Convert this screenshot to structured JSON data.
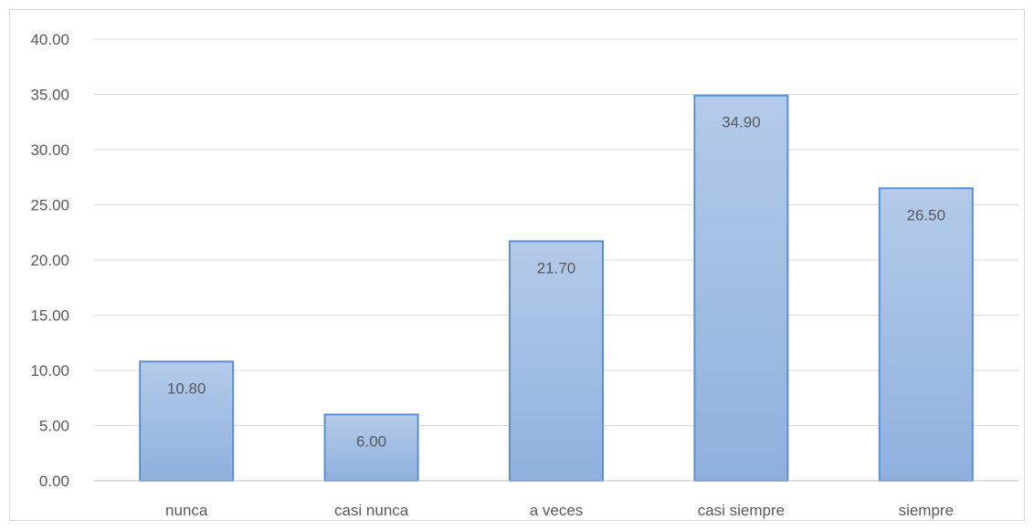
{
  "chart_data": {
    "type": "bar",
    "title": "",
    "xlabel": "",
    "ylabel": "",
    "categories": [
      "nunca",
      "casi nunca",
      "a veces",
      "casi siempre",
      "siempre"
    ],
    "values": [
      10.8,
      6.0,
      21.7,
      34.9,
      26.5
    ],
    "value_labels": [
      "10.80",
      "6.00",
      "21.70",
      "34.90",
      "26.50"
    ],
    "ylim": [
      0,
      40
    ],
    "yticks": [
      0,
      5,
      10,
      15,
      20,
      25,
      30,
      35,
      40
    ],
    "ytick_labels": [
      "0.00",
      "5.00",
      "10.00",
      "15.00",
      "20.00",
      "25.00",
      "30.00",
      "35.00",
      "40.00"
    ],
    "grid": true,
    "legend": "none",
    "colors": {
      "bar_fill_top": "#b4cbe9",
      "bar_fill_bottom": "#8fb0de",
      "bar_stroke": "#5b8fd5"
    }
  }
}
